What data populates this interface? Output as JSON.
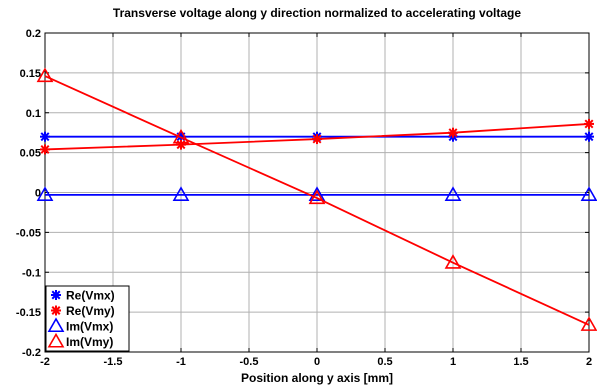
{
  "chart_data": {
    "type": "line",
    "title": "Transverse voltage along y direction normalized to accelerating voltage",
    "xlabel": "Position along y axis [mm]",
    "ylabel": "",
    "xlim": [
      -2,
      2
    ],
    "ylim": [
      -0.2,
      0.2
    ],
    "xticks": [
      -2,
      -1.5,
      -1,
      -0.5,
      0,
      0.5,
      1,
      1.5,
      2
    ],
    "yticks": [
      -0.2,
      -0.15,
      -0.1,
      -0.05,
      0,
      0.05,
      0.1,
      0.15,
      0.2
    ],
    "xtick_labels": [
      "-2",
      "-1.5",
      "-1",
      "-0.5",
      "0",
      "0.5",
      "1",
      "1.5",
      "2"
    ],
    "ytick_labels": [
      "-0.2",
      "-0.15",
      "-0.1",
      "-0.05",
      "0",
      "0.05",
      "0.1",
      "0.15",
      "0.2"
    ],
    "grid": true,
    "legend_position": "bottom-left",
    "series": [
      {
        "name": "Re(Vmx)",
        "color": "#0000ff",
        "marker": "star",
        "x": [
          -2,
          -1,
          0,
          1,
          2
        ],
        "y": [
          0.07,
          0.07,
          0.07,
          0.07,
          0.07
        ]
      },
      {
        "name": "Re(Vmy)",
        "color": "#ff0000",
        "marker": "star",
        "x": [
          -2,
          -1,
          0,
          1,
          2
        ],
        "y": [
          0.054,
          0.06,
          0.067,
          0.075,
          0.086
        ]
      },
      {
        "name": "Im(Vmx)",
        "color": "#0000ff",
        "marker": "triangle",
        "x": [
          -2,
          -1,
          0,
          1,
          2
        ],
        "y": [
          -0.003,
          -0.003,
          -0.003,
          -0.003,
          -0.003
        ]
      },
      {
        "name": "Im(Vmy)",
        "color": "#ff0000",
        "marker": "triangle",
        "x": [
          -2,
          -1,
          0,
          1,
          2
        ],
        "y": [
          0.146,
          0.069,
          -0.007,
          -0.088,
          -0.166
        ]
      }
    ]
  }
}
